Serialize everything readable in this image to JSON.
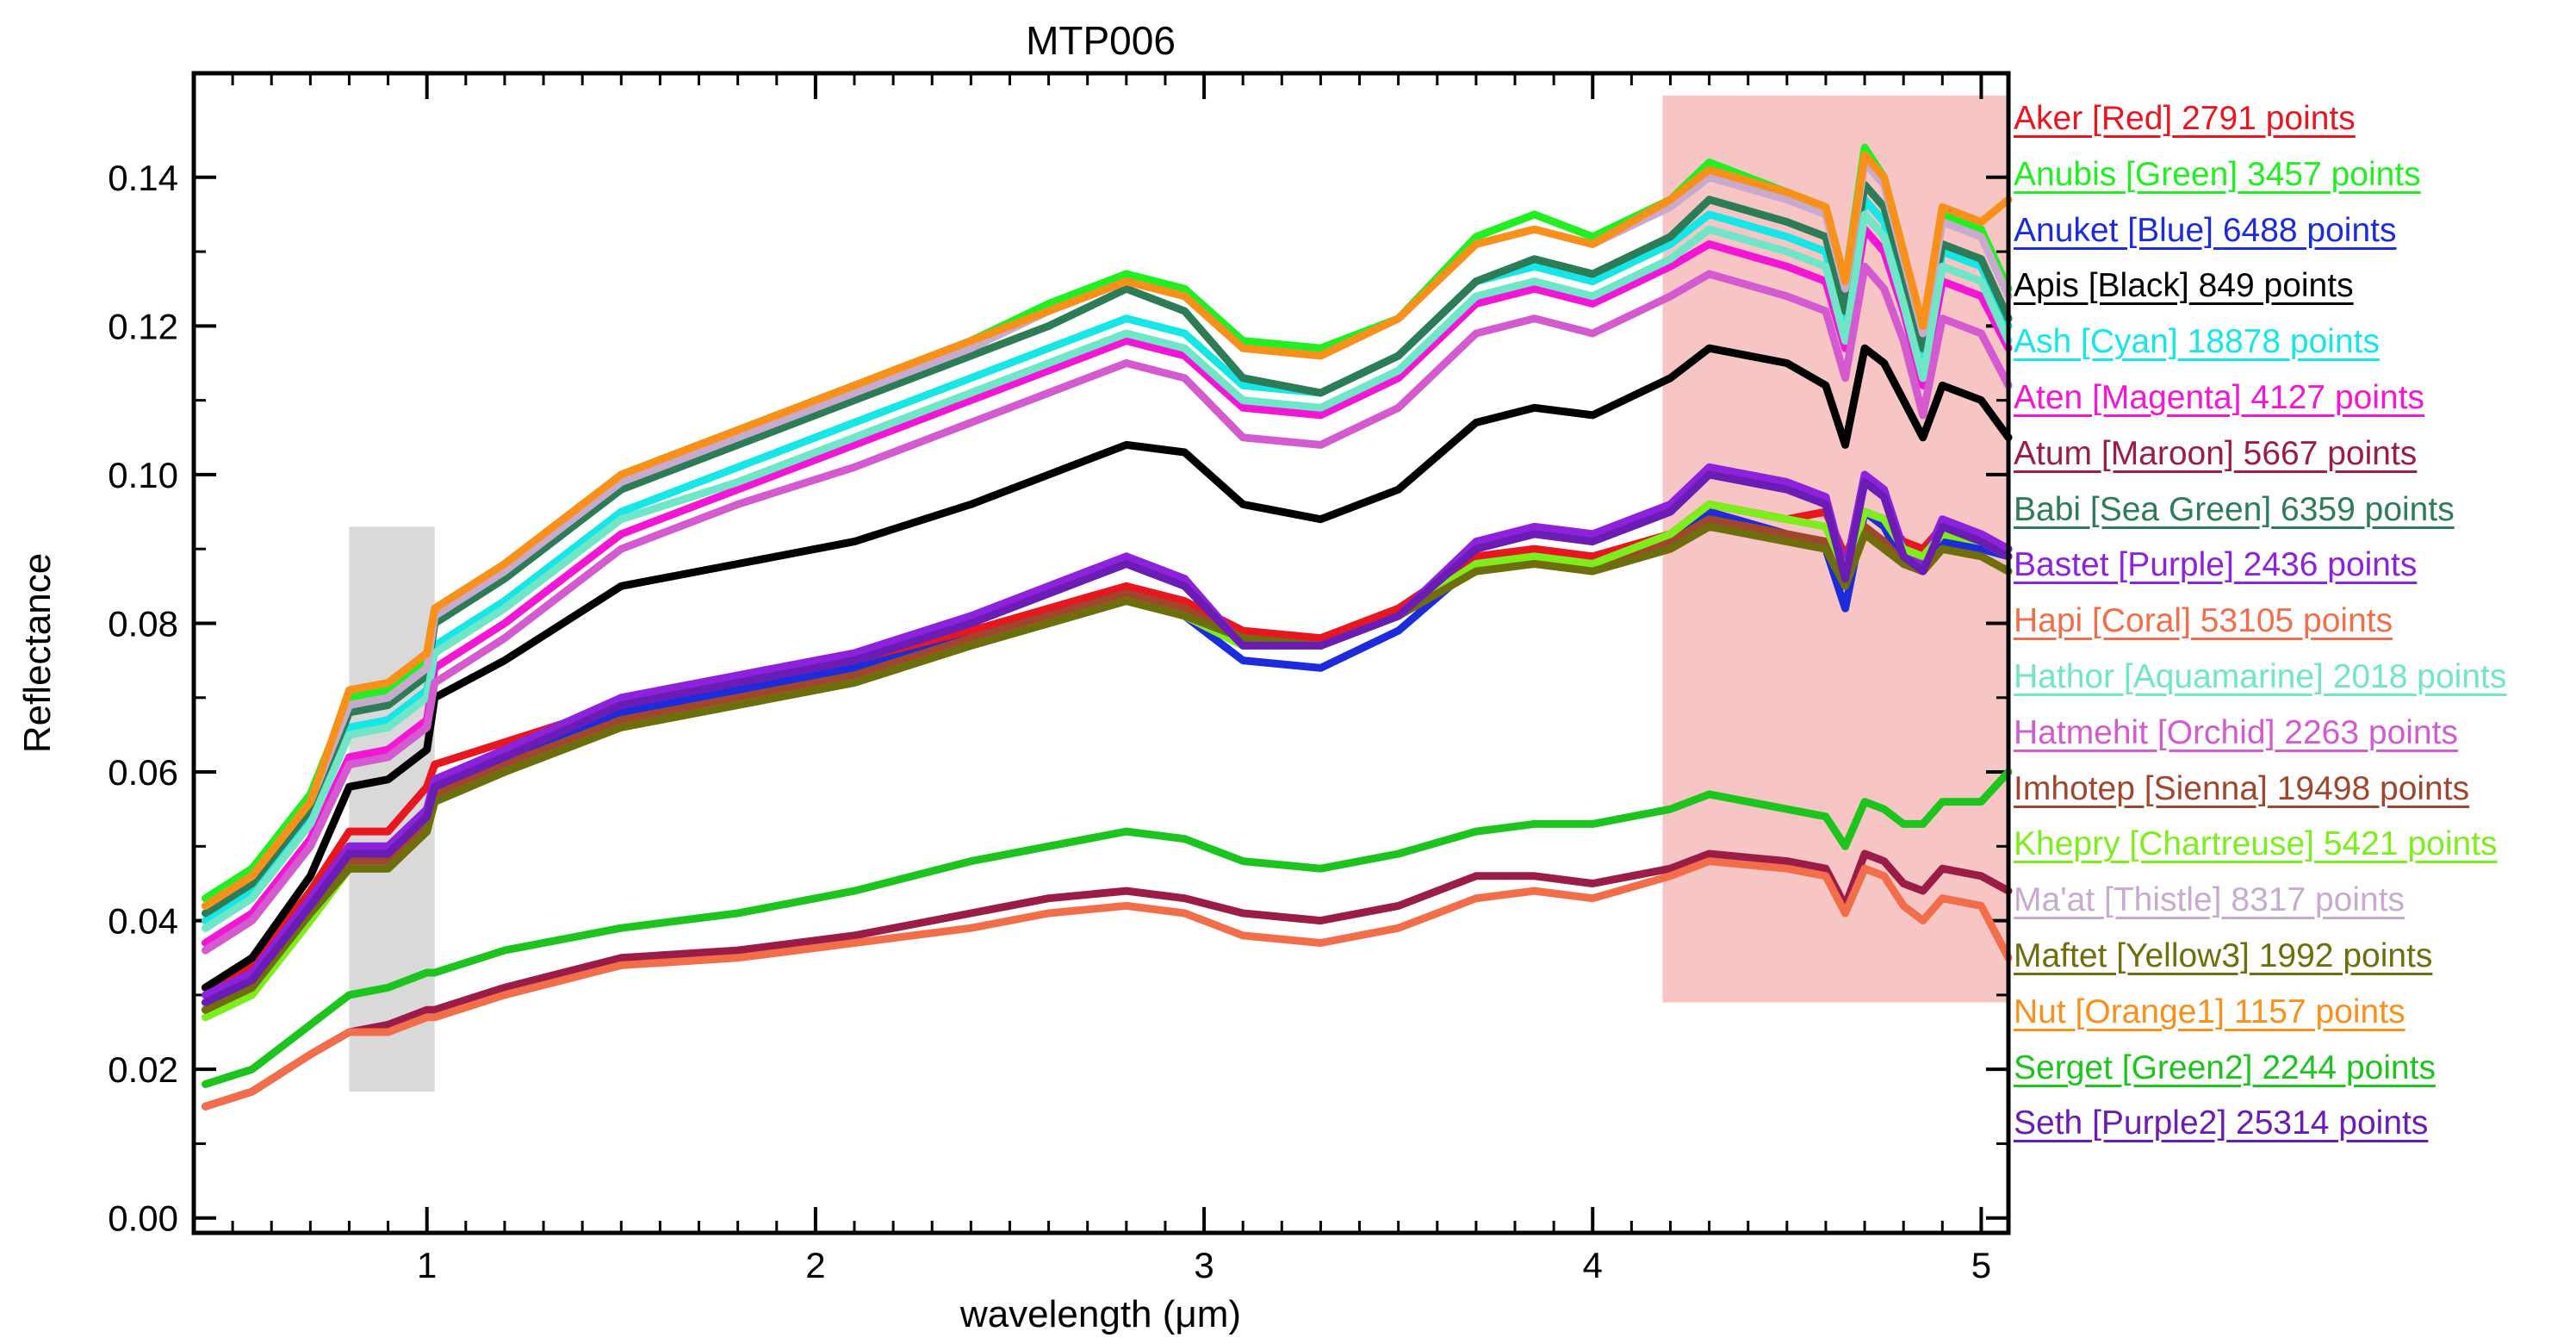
{
  "chart_data": {
    "type": "line",
    "title": "MTP006",
    "xlabel": "wavelength (μm)",
    "ylabel": "Reflectance",
    "xlim": [
      0.4,
      5.07
    ],
    "ylim": [
      -0.002,
      0.154
    ],
    "xticks": [
      1,
      2,
      3,
      4,
      5
    ],
    "xtick_labels": [
      "1",
      "2",
      "3",
      "4",
      "5"
    ],
    "yticks": [
      0.0,
      0.02,
      0.04,
      0.06,
      0.08,
      0.1,
      0.12,
      0.14
    ],
    "ytick_labels": [
      "0.00",
      "0.02",
      "0.04",
      "0.06",
      "0.08",
      "0.10",
      "0.12",
      "0.14"
    ],
    "shaded_regions": [
      {
        "x": [
          0.8,
          1.02
        ],
        "y": [
          0.017,
          0.093
        ],
        "color": "#d9d9d9"
      },
      {
        "x": [
          4.18,
          5.07
        ],
        "y": [
          0.029,
          0.151
        ],
        "color": "#f7c6c4"
      }
    ],
    "x": [
      0.43,
      0.55,
      0.7,
      0.8,
      0.9,
      1.0,
      1.02,
      1.2,
      1.5,
      1.8,
      2.1,
      2.4,
      2.6,
      2.8,
      2.95,
      3.1,
      3.3,
      3.5,
      3.7,
      3.85,
      4.0,
      4.2,
      4.3,
      4.5,
      4.6,
      4.65,
      4.7,
      4.75,
      4.8,
      4.85,
      4.9,
      5.0,
      5.07
    ],
    "series": [
      {
        "name": "Aker [Red]",
        "points": "2791 points",
        "color": "#e8161f",
        "values": [
          0.031,
          0.034,
          0.044,
          0.052,
          0.052,
          0.058,
          0.061,
          0.064,
          0.069,
          0.071,
          0.074,
          0.079,
          0.082,
          0.085,
          0.083,
          0.079,
          0.078,
          0.082,
          0.089,
          0.09,
          0.089,
          0.092,
          0.096,
          0.094,
          0.095,
          0.089,
          0.095,
          0.094,
          0.091,
          0.09,
          0.093,
          0.092,
          0.09
        ]
      },
      {
        "name": "Anubis [Green]",
        "points": "3457 points",
        "color": "#22ef22",
        "values": [
          0.043,
          0.047,
          0.057,
          0.07,
          0.071,
          0.075,
          0.081,
          0.087,
          0.1,
          0.106,
          0.112,
          0.118,
          0.123,
          0.127,
          0.125,
          0.118,
          0.117,
          0.121,
          0.132,
          0.135,
          0.132,
          0.137,
          0.142,
          0.138,
          0.136,
          0.126,
          0.144,
          0.14,
          0.13,
          0.118,
          0.135,
          0.133,
          0.125
        ]
      },
      {
        "name": "Anuket [Blue]",
        "points": "6488 points",
        "color": "#1c2cdc",
        "values": [
          0.029,
          0.032,
          0.042,
          0.049,
          0.049,
          0.054,
          0.058,
          0.062,
          0.068,
          0.071,
          0.074,
          0.078,
          0.081,
          0.084,
          0.081,
          0.075,
          0.074,
          0.079,
          0.088,
          0.089,
          0.088,
          0.091,
          0.095,
          0.092,
          0.09,
          0.082,
          0.095,
          0.093,
          0.088,
          0.087,
          0.091,
          0.09,
          0.089
        ]
      },
      {
        "name": "Apis [Black]",
        "points": "849 points",
        "color": "#000000",
        "values": [
          0.031,
          0.035,
          0.046,
          0.058,
          0.059,
          0.063,
          0.07,
          0.075,
          0.085,
          0.088,
          0.091,
          0.096,
          0.1,
          0.104,
          0.103,
          0.096,
          0.094,
          0.098,
          0.107,
          0.109,
          0.108,
          0.113,
          0.117,
          0.115,
          0.112,
          0.104,
          0.117,
          0.115,
          0.11,
          0.105,
          0.112,
          0.11,
          0.105
        ]
      },
      {
        "name": "Ash [Cyan]",
        "points": "18878 points",
        "color": "#16e6e6",
        "values": [
          0.04,
          0.044,
          0.054,
          0.066,
          0.067,
          0.071,
          0.077,
          0.083,
          0.095,
          0.101,
          0.107,
          0.113,
          0.117,
          0.121,
          0.119,
          0.112,
          0.111,
          0.116,
          0.126,
          0.128,
          0.126,
          0.131,
          0.135,
          0.132,
          0.13,
          0.12,
          0.137,
          0.134,
          0.125,
          0.115,
          0.13,
          0.128,
          0.12
        ]
      },
      {
        "name": "Aten [Magenta]",
        "points": "4127 points",
        "color": "#f316d4",
        "values": [
          0.037,
          0.041,
          0.051,
          0.062,
          0.063,
          0.067,
          0.074,
          0.08,
          0.092,
          0.098,
          0.104,
          0.11,
          0.114,
          0.118,
          0.116,
          0.109,
          0.108,
          0.113,
          0.123,
          0.125,
          0.123,
          0.128,
          0.131,
          0.128,
          0.126,
          0.117,
          0.133,
          0.13,
          0.122,
          0.112,
          0.126,
          0.124,
          0.117
        ]
      },
      {
        "name": "Atum [Maroon]",
        "points": "5667 points",
        "color": "#9c1c48",
        "values": [
          0.015,
          0.017,
          0.022,
          0.025,
          0.026,
          0.028,
          0.028,
          0.031,
          0.035,
          0.036,
          0.038,
          0.041,
          0.043,
          0.044,
          0.043,
          0.041,
          0.04,
          0.042,
          0.046,
          0.046,
          0.045,
          0.047,
          0.049,
          0.048,
          0.047,
          0.042,
          0.049,
          0.048,
          0.045,
          0.044,
          0.047,
          0.046,
          0.044
        ]
      },
      {
        "name": "Babi [Sea Green]",
        "points": "6359 points",
        "color": "#2c7d57",
        "values": [
          0.041,
          0.045,
          0.055,
          0.068,
          0.069,
          0.073,
          0.08,
          0.086,
          0.098,
          0.104,
          0.11,
          0.116,
          0.12,
          0.125,
          0.122,
          0.113,
          0.111,
          0.116,
          0.126,
          0.129,
          0.127,
          0.132,
          0.137,
          0.134,
          0.132,
          0.122,
          0.139,
          0.136,
          0.127,
          0.117,
          0.131,
          0.129,
          0.121
        ]
      },
      {
        "name": "Bastet [Purple]",
        "points": "2436 points",
        "color": "#8e22dc",
        "values": [
          0.03,
          0.033,
          0.043,
          0.05,
          0.05,
          0.055,
          0.059,
          0.063,
          0.07,
          0.073,
          0.076,
          0.081,
          0.085,
          0.089,
          0.086,
          0.077,
          0.077,
          0.081,
          0.091,
          0.093,
          0.092,
          0.096,
          0.101,
          0.099,
          0.097,
          0.087,
          0.1,
          0.098,
          0.09,
          0.088,
          0.094,
          0.092,
          0.09
        ]
      },
      {
        "name": "Hapi [Coral]",
        "points": "53105 points",
        "color": "#f26e4a",
        "values": [
          0.015,
          0.017,
          0.022,
          0.025,
          0.025,
          0.027,
          0.027,
          0.03,
          0.034,
          0.035,
          0.037,
          0.039,
          0.041,
          0.042,
          0.041,
          0.038,
          0.037,
          0.039,
          0.043,
          0.044,
          0.043,
          0.046,
          0.048,
          0.047,
          0.046,
          0.041,
          0.047,
          0.046,
          0.042,
          0.04,
          0.043,
          0.042,
          0.035
        ]
      },
      {
        "name": "Hathor [Aquamarine]",
        "points": "2018 points",
        "color": "#6fe6c8",
        "values": [
          0.039,
          0.043,
          0.053,
          0.065,
          0.066,
          0.07,
          0.076,
          0.082,
          0.094,
          0.099,
          0.105,
          0.111,
          0.115,
          0.119,
          0.117,
          0.11,
          0.109,
          0.114,
          0.124,
          0.126,
          0.124,
          0.129,
          0.133,
          0.13,
          0.128,
          0.118,
          0.135,
          0.132,
          0.123,
          0.113,
          0.128,
          0.126,
          0.118
        ]
      },
      {
        "name": "Hatmehit [Orchid]",
        "points": "2263 points",
        "color": "#d45ad0",
        "values": [
          0.036,
          0.04,
          0.05,
          0.061,
          0.062,
          0.066,
          0.072,
          0.078,
          0.09,
          0.096,
          0.101,
          0.107,
          0.111,
          0.115,
          0.113,
          0.105,
          0.104,
          0.109,
          0.119,
          0.121,
          0.119,
          0.124,
          0.127,
          0.124,
          0.122,
          0.113,
          0.128,
          0.125,
          0.118,
          0.108,
          0.121,
          0.119,
          0.112
        ]
      },
      {
        "name": "Imhotep [Sienna]",
        "points": "19498 points",
        "color": "#a0462c",
        "values": [
          0.028,
          0.031,
          0.041,
          0.048,
          0.048,
          0.053,
          0.057,
          0.061,
          0.067,
          0.07,
          0.073,
          0.078,
          0.081,
          0.084,
          0.082,
          0.078,
          0.077,
          0.081,
          0.088,
          0.089,
          0.088,
          0.091,
          0.094,
          0.092,
          0.091,
          0.085,
          0.093,
          0.091,
          0.088,
          0.087,
          0.09,
          0.089,
          0.087
        ]
      },
      {
        "name": "Khepry [Chartreuse]",
        "points": "5421 points",
        "color": "#7dee1c",
        "values": [
          0.027,
          0.03,
          0.04,
          0.047,
          0.047,
          0.052,
          0.056,
          0.06,
          0.066,
          0.069,
          0.072,
          0.077,
          0.08,
          0.083,
          0.081,
          0.077,
          0.077,
          0.081,
          0.088,
          0.089,
          0.088,
          0.092,
          0.096,
          0.094,
          0.093,
          0.087,
          0.095,
          0.094,
          0.09,
          0.089,
          0.092,
          0.091,
          0.089
        ]
      },
      {
        "name": "Ma'at [Thistle]",
        "points": "8317 points",
        "color": "#c9aacf",
        "values": [
          0.042,
          0.046,
          0.056,
          0.069,
          0.07,
          0.074,
          0.081,
          0.087,
          0.099,
          0.105,
          0.111,
          0.117,
          0.122,
          0.126,
          0.124,
          0.117,
          0.116,
          0.121,
          0.131,
          0.133,
          0.131,
          0.136,
          0.14,
          0.137,
          0.135,
          0.125,
          0.142,
          0.139,
          0.129,
          0.119,
          0.134,
          0.132,
          0.124
        ]
      },
      {
        "name": "Maftet [Yellow3]",
        "points": "1992 points",
        "color": "#6e6e0c",
        "values": [
          0.028,
          0.031,
          0.041,
          0.047,
          0.047,
          0.052,
          0.056,
          0.06,
          0.066,
          0.069,
          0.072,
          0.077,
          0.08,
          0.083,
          0.081,
          0.078,
          0.077,
          0.081,
          0.087,
          0.088,
          0.087,
          0.09,
          0.093,
          0.091,
          0.09,
          0.085,
          0.092,
          0.09,
          0.088,
          0.087,
          0.09,
          0.089,
          0.087
        ]
      },
      {
        "name": "Nut [Orange1]",
        "points": "1157 points",
        "color": "#f8901a",
        "values": [
          0.042,
          0.046,
          0.056,
          0.071,
          0.072,
          0.076,
          0.082,
          0.088,
          0.1,
          0.106,
          0.112,
          0.118,
          0.122,
          0.126,
          0.124,
          0.117,
          0.116,
          0.121,
          0.131,
          0.133,
          0.131,
          0.137,
          0.141,
          0.138,
          0.136,
          0.126,
          0.143,
          0.14,
          0.13,
          0.12,
          0.136,
          0.134,
          0.137
        ]
      },
      {
        "name": "Serget [Green2]",
        "points": "2244 points",
        "color": "#1ec41e",
        "values": [
          0.018,
          0.02,
          0.026,
          0.03,
          0.031,
          0.033,
          0.033,
          0.036,
          0.039,
          0.041,
          0.044,
          0.048,
          0.05,
          0.052,
          0.051,
          0.048,
          0.047,
          0.049,
          0.052,
          0.053,
          0.053,
          0.055,
          0.057,
          0.055,
          0.054,
          0.05,
          0.056,
          0.055,
          0.053,
          0.053,
          0.056,
          0.056,
          0.06
        ]
      },
      {
        "name": "Seth [Purple2]",
        "points": "25314 points",
        "color": "#6a1cb4",
        "values": [
          0.029,
          0.032,
          0.042,
          0.049,
          0.049,
          0.054,
          0.058,
          0.062,
          0.069,
          0.072,
          0.075,
          0.08,
          0.084,
          0.088,
          0.085,
          0.077,
          0.077,
          0.081,
          0.09,
          0.092,
          0.091,
          0.095,
          0.1,
          0.098,
          0.096,
          0.086,
          0.099,
          0.097,
          0.089,
          0.087,
          0.093,
          0.091,
          0.089
        ]
      }
    ]
  }
}
